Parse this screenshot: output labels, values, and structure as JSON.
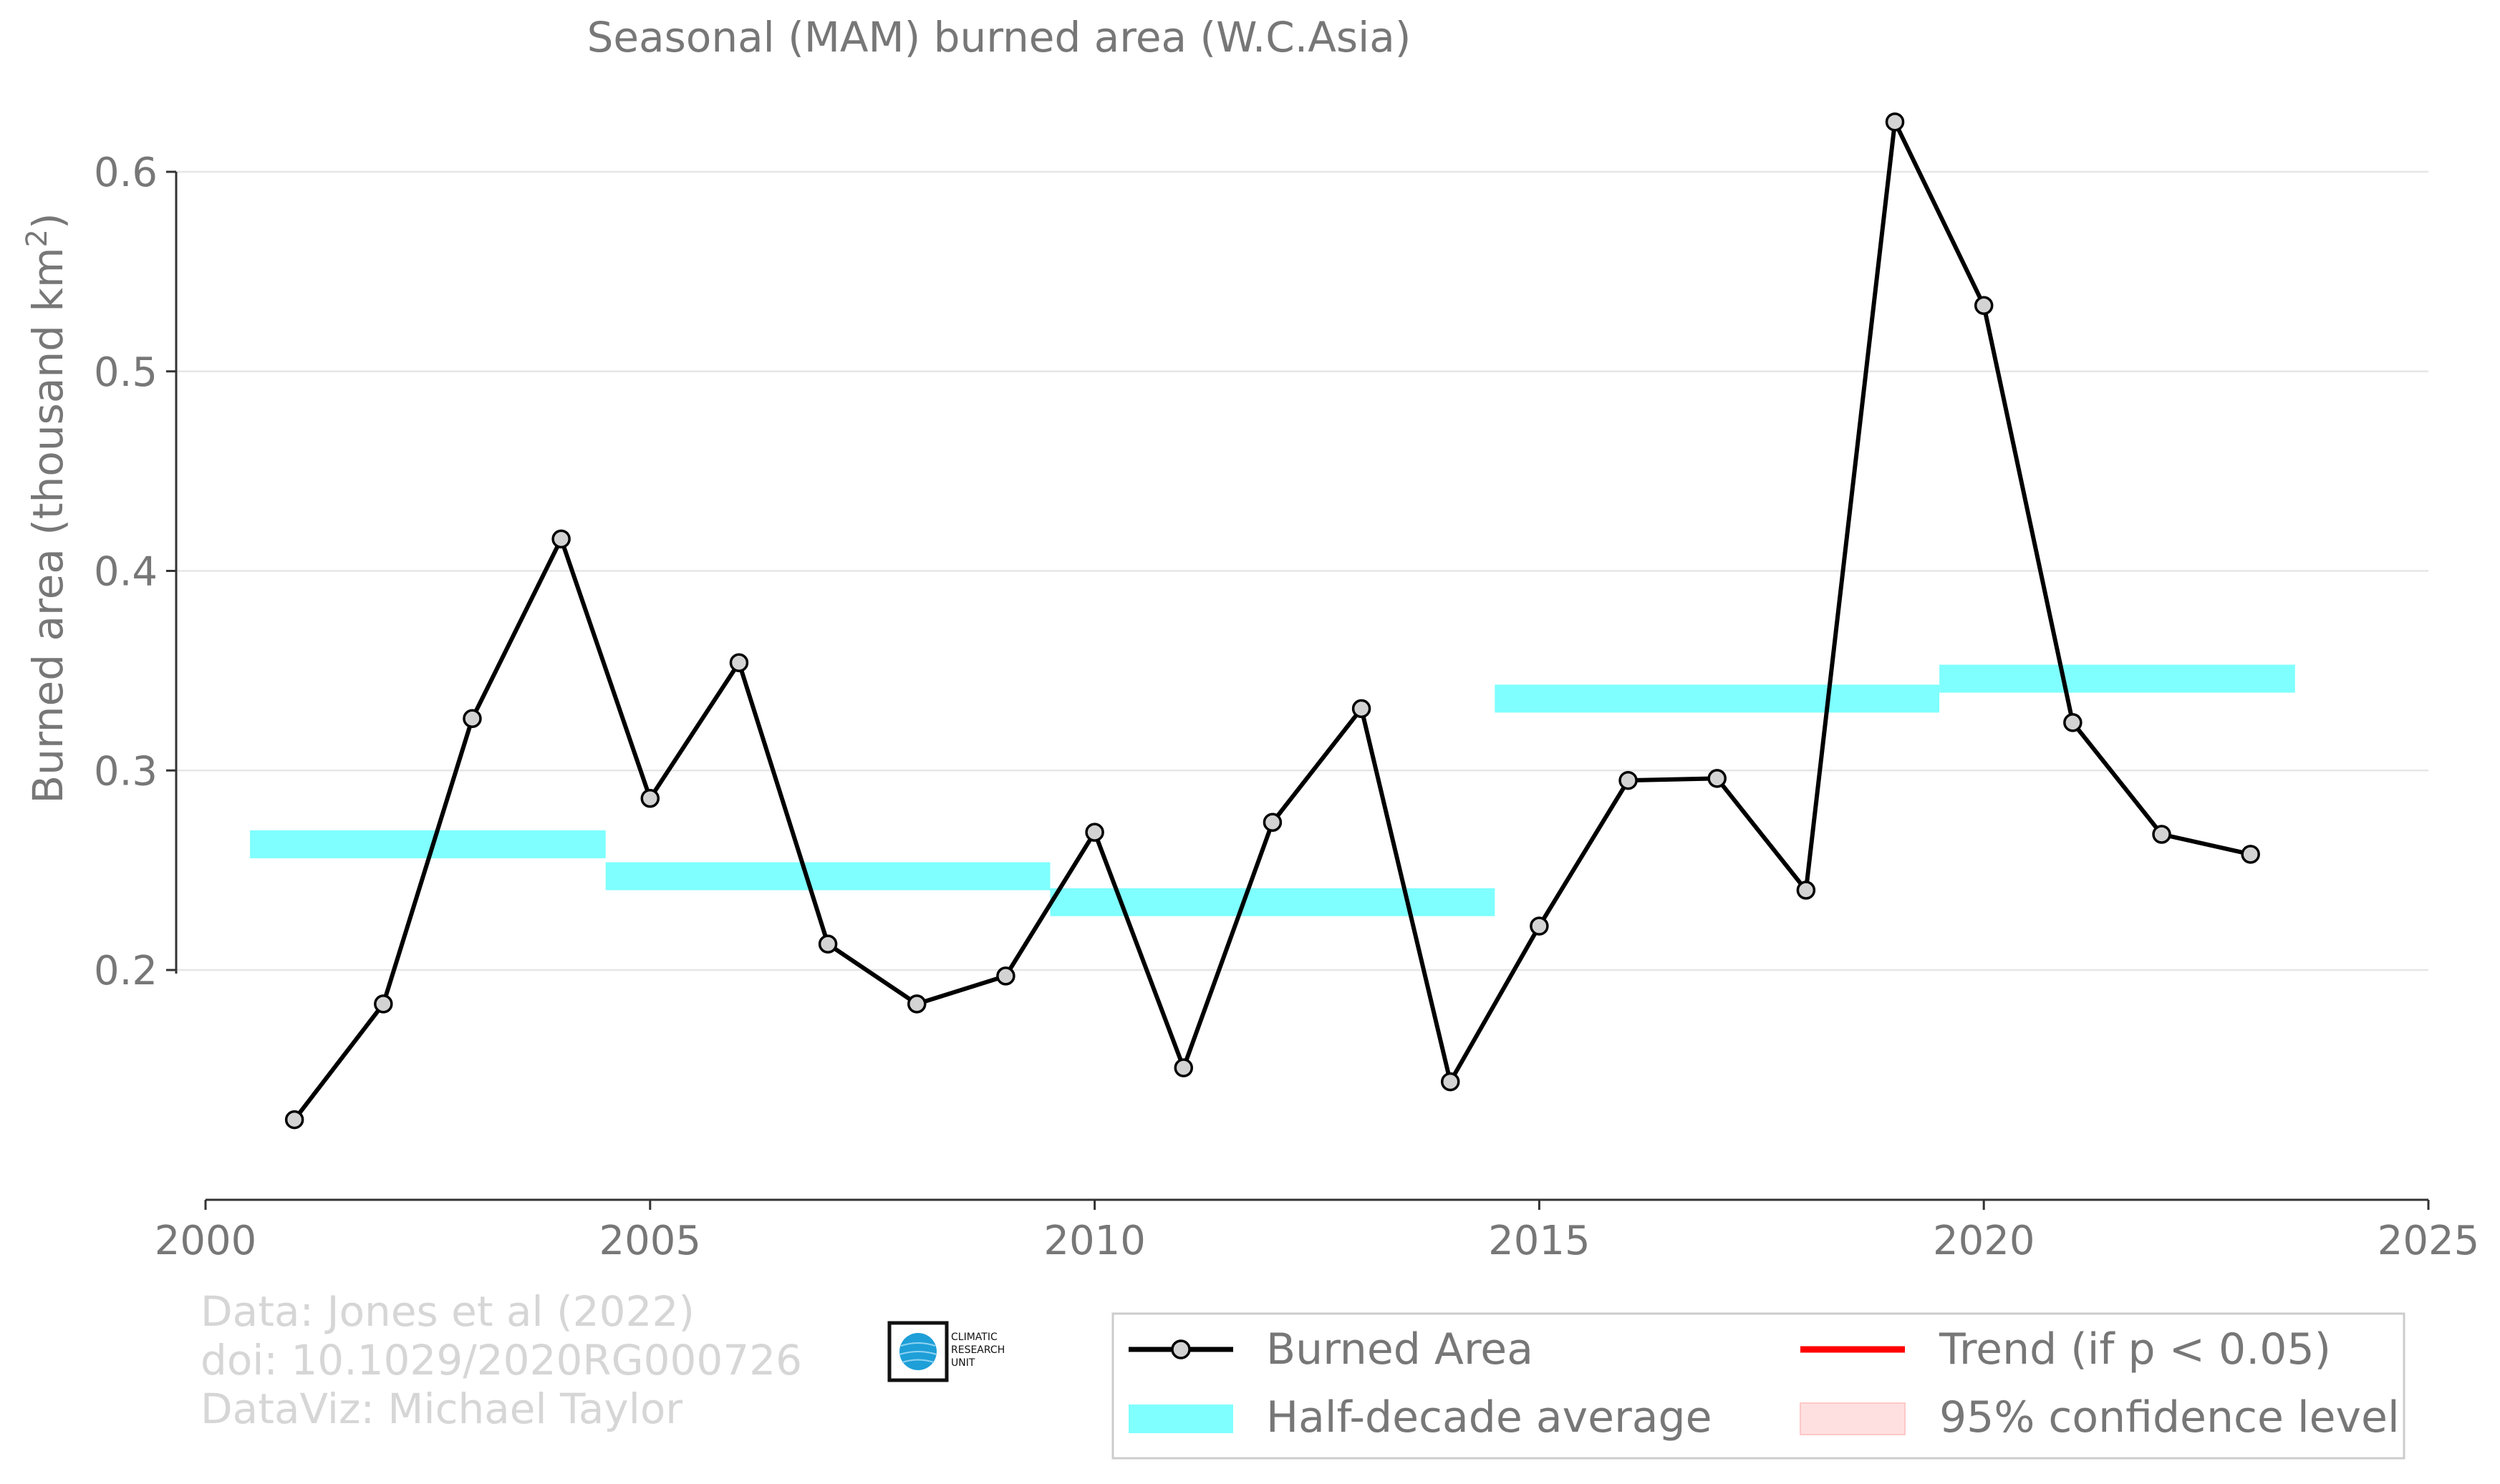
{
  "chart_data": {
    "type": "line",
    "title": "Seasonal (MAM) burned area (W.C.Asia)",
    "xlabel": "",
    "ylabel": "Burned area (thousand km",
    "ylabel_superscript": "2",
    "ylabel_close": ")",
    "xlim": [
      2000,
      2025
    ],
    "ylim": [
      0.1,
      0.65
    ],
    "x_ticks": [
      "2000",
      "2005",
      "2010",
      "2015",
      "2020",
      "2025"
    ],
    "y_ticks": [
      "0.2",
      "0.3",
      "0.4",
      "0.5",
      "0.6"
    ],
    "grid": "horizontal",
    "legend_position": "bottom-right",
    "series": [
      {
        "name": "Burned Area",
        "color": "#000000",
        "marker_fill": "#d3d3d3",
        "x": [
          2001,
          2002,
          2003,
          2004,
          2005,
          2006,
          2007,
          2008,
          2009,
          2010,
          2011,
          2012,
          2013,
          2014,
          2015,
          2016,
          2017,
          2018,
          2019,
          2020,
          2021,
          2022,
          2023
        ],
        "y": [
          0.125,
          0.183,
          0.326,
          0.416,
          0.286,
          0.354,
          0.213,
          0.183,
          0.197,
          0.269,
          0.151,
          0.274,
          0.331,
          0.144,
          0.222,
          0.295,
          0.296,
          0.24,
          0.625,
          0.533,
          0.324,
          0.268,
          0.258
        ]
      }
    ],
    "half_decade_average": {
      "name": "Half-decade average",
      "color": "#7fffff",
      "segments": [
        {
          "x_start": 2000.5,
          "x_end": 2004.5,
          "y_low": 0.256,
          "y_high": 0.27
        },
        {
          "x_start": 2004.5,
          "x_end": 2009.5,
          "y_low": 0.24,
          "y_high": 0.254
        },
        {
          "x_start": 2009.5,
          "x_end": 2014.5,
          "y_low": 0.227,
          "y_high": 0.241
        },
        {
          "x_start": 2014.5,
          "x_end": 2019.5,
          "y_low": 0.329,
          "y_high": 0.343
        },
        {
          "x_start": 2019.5,
          "x_end": 2023.5,
          "y_low": 0.339,
          "y_high": 0.353
        }
      ]
    },
    "legend": [
      {
        "label": "Burned Area",
        "kind": "line-marker",
        "color": "#000000"
      },
      {
        "label": "Trend (if p < 0.05)",
        "kind": "line",
        "color": "#ff0000"
      },
      {
        "label": "Half-decade average",
        "kind": "band",
        "color": "#7fffff"
      },
      {
        "label": "95% confidence level",
        "kind": "band",
        "color": "#ffe0e0"
      }
    ]
  },
  "credits": {
    "line1": "Data: Jones et al (2022)",
    "line2": "doi: 10.1029/2020RG000726",
    "line3": "DataViz: Michael Taylor"
  },
  "logo": {
    "line1": "CLIMATIC",
    "line2": "RESEARCH",
    "line3": "UNIT"
  }
}
